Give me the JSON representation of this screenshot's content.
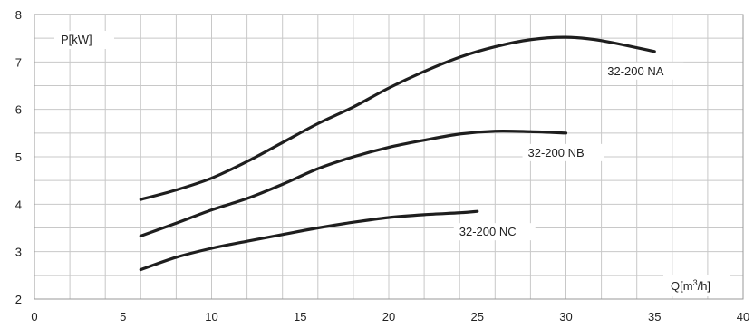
{
  "chart_data": {
    "type": "line",
    "title": "",
    "ylabel": "P[kW]",
    "xlabel": "Q[m³/h]",
    "xlim": [
      0,
      40
    ],
    "ylim": [
      2,
      8
    ],
    "x_ticks": [
      "0",
      "5",
      "10",
      "15",
      "20",
      "25",
      "30",
      "35",
      "40"
    ],
    "y_ticks": [
      "2",
      "3",
      "4",
      "5",
      "6",
      "7",
      "8"
    ],
    "grid": true,
    "series": [
      {
        "name": "32-200 NA",
        "x": [
          6,
          8,
          10,
          12,
          14,
          16,
          18,
          20,
          22,
          24,
          26,
          28,
          30,
          32,
          35
        ],
        "y": [
          4.1,
          4.3,
          4.55,
          4.9,
          5.3,
          5.7,
          6.05,
          6.45,
          6.8,
          7.1,
          7.32,
          7.47,
          7.52,
          7.45,
          7.22
        ]
      },
      {
        "name": "32-200 NB",
        "x": [
          6,
          8,
          10,
          12,
          14,
          16,
          18,
          20,
          22,
          24,
          26,
          28,
          30
        ],
        "y": [
          3.33,
          3.6,
          3.88,
          4.12,
          4.42,
          4.75,
          5.0,
          5.2,
          5.35,
          5.48,
          5.54,
          5.53,
          5.5
        ]
      },
      {
        "name": "32-200 NC",
        "x": [
          6,
          8,
          10,
          12,
          14,
          16,
          18,
          20,
          22,
          24,
          25
        ],
        "y": [
          2.62,
          2.88,
          3.07,
          3.22,
          3.36,
          3.5,
          3.62,
          3.72,
          3.78,
          3.82,
          3.85
        ]
      }
    ]
  }
}
